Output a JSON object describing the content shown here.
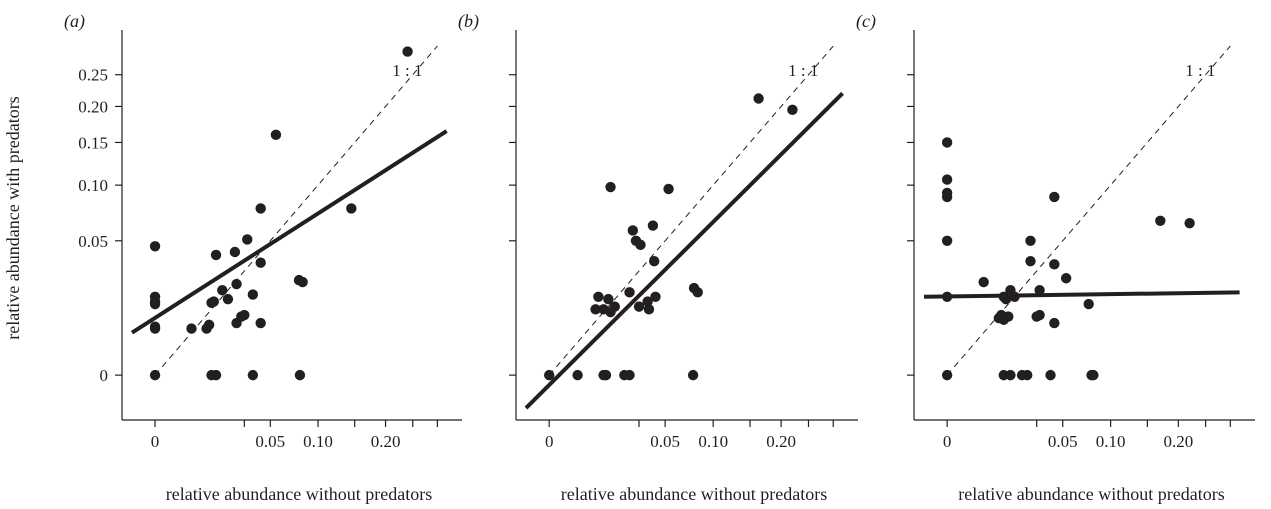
{
  "ylabel": "relative abundance with predators",
  "chart_data": [
    {
      "type": "scatter",
      "panel_label": "(a)",
      "xlabel": "relative abundance without predators",
      "x_ticks": [
        "0",
        "0.05",
        "0.10",
        "0.20"
      ],
      "y_ticks": [
        "0",
        "0.05",
        "0.10",
        "0.15",
        "0.20",
        "0.25"
      ],
      "scale": "square-root",
      "xlim": [
        -0.002,
        0.35
      ],
      "ylim": [
        -0.002,
        0.33
      ],
      "reference_line": "1:1",
      "reference_label": "1 : 1",
      "fit_line": [
        [
          -0.002,
          0.005
        ],
        [
          0.32,
          0.165
        ]
      ],
      "points": [
        [
          0,
          0
        ],
        [
          0,
          0.006
        ],
        [
          0,
          0.0065
        ],
        [
          0,
          0.014
        ],
        [
          0,
          0.015
        ],
        [
          0,
          0.017
        ],
        [
          0,
          0.046
        ],
        [
          0.005,
          0.006
        ],
        [
          0.01,
          0.006
        ],
        [
          0.011,
          0.007
        ],
        [
          0.012,
          0.0145
        ],
        [
          0.013,
          0.015
        ],
        [
          0.012,
          0
        ],
        [
          0.014,
          0
        ],
        [
          0.014,
          0.04
        ],
        [
          0.017,
          0.02
        ],
        [
          0.02,
          0.016
        ],
        [
          0.024,
          0.042
        ],
        [
          0.025,
          0.0075
        ],
        [
          0.025,
          0.023
        ],
        [
          0.028,
          0.0095
        ],
        [
          0.03,
          0.01
        ],
        [
          0.032,
          0.051
        ],
        [
          0.036,
          0
        ],
        [
          0.036,
          0.018
        ],
        [
          0.042,
          0.0075
        ],
        [
          0.042,
          0.035
        ],
        [
          0.042,
          0.077
        ],
        [
          0.055,
          0.16
        ],
        [
          0.078,
          0.025
        ],
        [
          0.079,
          0
        ],
        [
          0.082,
          0.024
        ],
        [
          0.145,
          0.077
        ],
        [
          0.24,
          0.29
        ]
      ]
    },
    {
      "type": "scatter",
      "panel_label": "(b)",
      "xlabel": "relative abundance without predators",
      "x_ticks": [
        "0",
        "0.05",
        "0.10",
        "0.20"
      ],
      "y_ticks": [],
      "scale": "square-root",
      "xlim": [
        -0.002,
        0.35
      ],
      "ylim": [
        -0.002,
        0.33
      ],
      "reference_line": "1:1",
      "reference_label": "1 : 1",
      "fit_line": [
        [
          -0.002,
          -0.003
        ],
        [
          0.32,
          0.22
        ]
      ],
      "points": [
        [
          0,
          0
        ],
        [
          0.003,
          0
        ],
        [
          0.008,
          0.012
        ],
        [
          0.009,
          0.017
        ],
        [
          0.011,
          0.012
        ],
        [
          0.011,
          0
        ],
        [
          0.012,
          0
        ],
        [
          0.013,
          0.016
        ],
        [
          0.014,
          0.098
        ],
        [
          0.014,
          0.011
        ],
        [
          0.016,
          0.013
        ],
        [
          0.021,
          0
        ],
        [
          0.024,
          0
        ],
        [
          0.024,
          0.019
        ],
        [
          0.026,
          0.058
        ],
        [
          0.028,
          0.05
        ],
        [
          0.03,
          0.013
        ],
        [
          0.031,
          0.047
        ],
        [
          0.036,
          0.015
        ],
        [
          0.037,
          0.012
        ],
        [
          0.04,
          0.062
        ],
        [
          0.041,
          0.036
        ],
        [
          0.042,
          0.017
        ],
        [
          0.053,
          0.096
        ],
        [
          0.077,
          0
        ],
        [
          0.078,
          0.021
        ],
        [
          0.082,
          0.019
        ],
        [
          0.163,
          0.212
        ],
        [
          0.22,
          0.195
        ]
      ]
    },
    {
      "type": "scatter",
      "panel_label": "(c)",
      "xlabel": "relative abundance without predators",
      "x_ticks": [
        "0",
        "0.05",
        "0.10",
        "0.20"
      ],
      "y_ticks": [],
      "scale": "square-root",
      "xlim": [
        -0.002,
        0.35
      ],
      "ylim": [
        -0.002,
        0.33
      ],
      "reference_line": "1:1",
      "reference_label": "1 : 1",
      "fit_line": [
        [
          -0.002,
          0.017
        ],
        [
          0.32,
          0.019
        ]
      ],
      "points": [
        [
          0,
          0
        ],
        [
          0,
          0.017
        ],
        [
          0,
          0.05
        ],
        [
          0,
          0.088
        ],
        [
          0,
          0.092
        ],
        [
          0,
          0.106
        ],
        [
          0,
          0.15
        ],
        [
          0.005,
          0.024
        ],
        [
          0.01,
          0.009
        ],
        [
          0.011,
          0.01
        ],
        [
          0.012,
          0.017
        ],
        [
          0.012,
          0.0085
        ],
        [
          0.012,
          0
        ],
        [
          0.013,
          0.016
        ],
        [
          0.014,
          0.0095
        ],
        [
          0.015,
          0
        ],
        [
          0.015,
          0.02
        ],
        [
          0.017,
          0.017
        ],
        [
          0.021,
          0
        ],
        [
          0.024,
          0
        ],
        [
          0.026,
          0.036
        ],
        [
          0.026,
          0.05
        ],
        [
          0.03,
          0.0095
        ],
        [
          0.032,
          0.01
        ],
        [
          0.032,
          0.02
        ],
        [
          0.04,
          0
        ],
        [
          0.043,
          0.0075
        ],
        [
          0.043,
          0.034
        ],
        [
          0.043,
          0.088
        ],
        [
          0.053,
          0.026
        ],
        [
          0.075,
          0.014
        ],
        [
          0.078,
          0
        ],
        [
          0.08,
          0
        ],
        [
          0.17,
          0.066
        ],
        [
          0.22,
          0.064
        ]
      ]
    }
  ]
}
